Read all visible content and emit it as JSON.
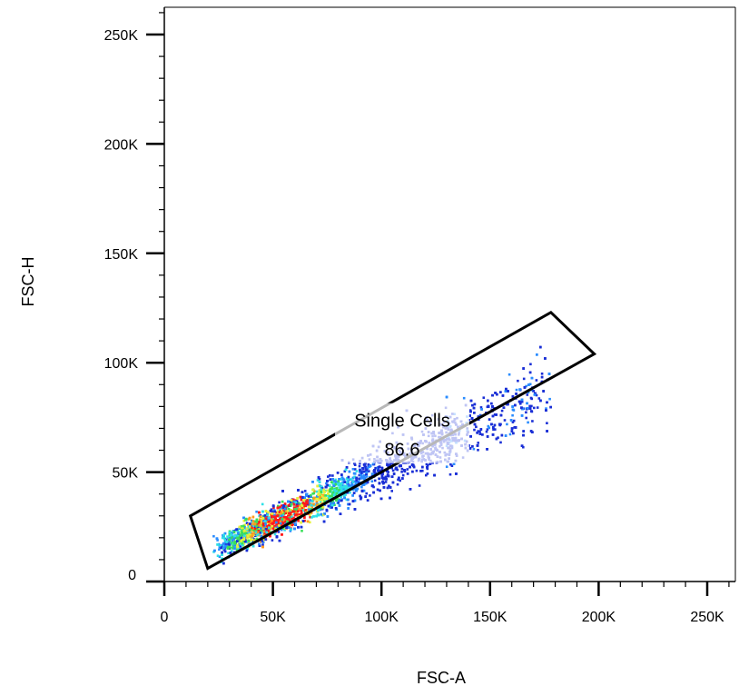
{
  "chart_data": {
    "type": "scatter",
    "subtype": "flow-cytometry-density-plot",
    "xlabel": "FSC-A",
    "ylabel": "FSC-H",
    "xlim": [
      0,
      262144
    ],
    "ylim": [
      0,
      262144
    ],
    "x_ticks": [
      {
        "value": 0,
        "label": "0"
      },
      {
        "value": 50000,
        "label": "50K"
      },
      {
        "value": 100000,
        "label": "100K"
      },
      {
        "value": 150000,
        "label": "150K"
      },
      {
        "value": 200000,
        "label": "200K"
      },
      {
        "value": 250000,
        "label": "250K"
      }
    ],
    "y_ticks": [
      {
        "value": 0,
        "label": "0"
      },
      {
        "value": 50000,
        "label": "50K"
      },
      {
        "value": 100000,
        "label": "100K"
      },
      {
        "value": 150000,
        "label": "150K"
      },
      {
        "value": 200000,
        "label": "200K"
      },
      {
        "value": 250000,
        "label": "250K"
      }
    ],
    "grid": false,
    "gate": {
      "name": "Single Cells",
      "percent": "86.6",
      "vertices": [
        [
          12000,
          30000
        ],
        [
          178000,
          123000
        ],
        [
          198000,
          104000
        ],
        [
          20000,
          6000
        ]
      ]
    },
    "population": {
      "x_range": [
        22000,
        178000
      ],
      "ratio_mean": 0.47,
      "density_peak_x": 55000,
      "color_scale": [
        "#1a2fd6",
        "#2a8cff",
        "#2fe0e6",
        "#3adf5a",
        "#e8f03a",
        "#ff9a1e",
        "#ff1a1a"
      ]
    }
  }
}
